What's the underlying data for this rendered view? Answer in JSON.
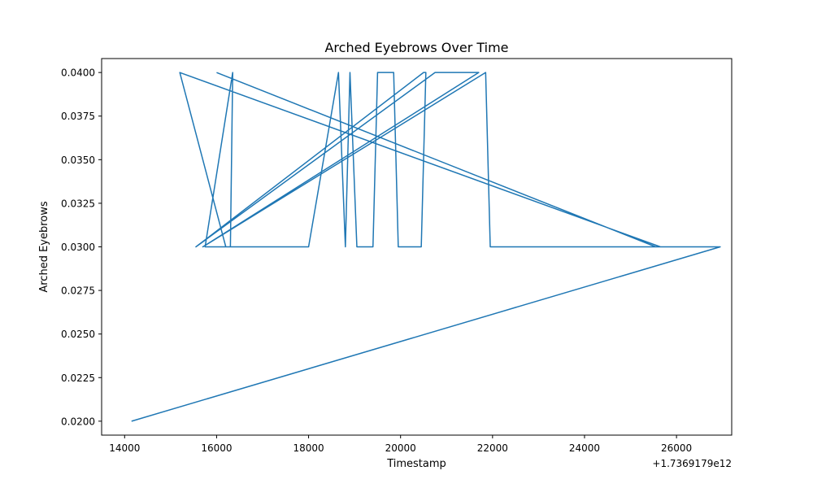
{
  "chart_data": {
    "type": "line",
    "title": "Arched Eyebrows Over Time",
    "xlabel": "Timestamp",
    "ylabel": "Arched Eyebrows",
    "x_offset_text": "+1.7369179e12",
    "xlim": [
      13500,
      27200
    ],
    "ylim": [
      0.0192,
      0.0408
    ],
    "x_ticks": [
      14000,
      16000,
      18000,
      20000,
      22000,
      24000,
      26000
    ],
    "x_tick_labels": [
      "14000",
      "16000",
      "18000",
      "20000",
      "22000",
      "24000",
      "26000"
    ],
    "y_ticks": [
      0.02,
      0.0225,
      0.025,
      0.0275,
      0.03,
      0.0325,
      0.035,
      0.0375,
      0.04
    ],
    "y_tick_labels": [
      "0.0200",
      "0.0225",
      "0.0250",
      "0.0275",
      "0.0300",
      "0.0325",
      "0.0350",
      "0.0375",
      "0.0400"
    ],
    "grid": false,
    "series": [
      {
        "color": "#1f77b4",
        "x": [
          14150,
          26950,
          25650,
          15200,
          16200,
          16300,
          16350,
          15750,
          18000,
          18650,
          18800,
          18900,
          19050,
          19200,
          19400,
          19500,
          19850,
          19950,
          20300,
          20450,
          20550,
          20500,
          15550,
          20750,
          21700,
          15700,
          21850,
          21950,
          22050,
          22900,
          24300,
          26900,
          25550,
          16000
        ],
        "y": [
          0.02,
          0.03,
          0.03,
          0.04,
          0.03,
          0.03,
          0.04,
          0.03,
          0.03,
          0.04,
          0.03,
          0.04,
          0.03,
          0.03,
          0.03,
          0.04,
          0.04,
          0.03,
          0.03,
          0.03,
          0.04,
          0.04,
          0.03,
          0.04,
          0.04,
          0.03,
          0.04,
          0.03,
          0.03,
          0.03,
          0.03,
          0.03,
          0.03,
          0.04
        ]
      }
    ]
  }
}
